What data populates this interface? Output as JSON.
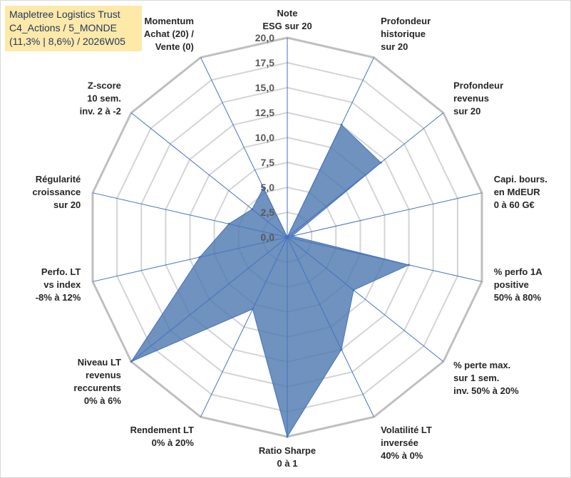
{
  "chart_data": {
    "type": "radar",
    "title": [
      "Mapletree Logistics Trust",
      "C4_Actions / 5_MONDE",
      "(11,3% | 8,6%) / 2026W05"
    ],
    "axis": {
      "min": 0,
      "max": 20,
      "step": 2.5,
      "tick_labels": [
        "0,0",
        "2,5",
        "5,0",
        "7,5",
        "10,0",
        "12,5",
        "15,0",
        "17,5",
        "20,0"
      ]
    },
    "categories": [
      [
        "Note",
        "ESG sur 20"
      ],
      [
        "Profondeur",
        "historique",
        "sur 20"
      ],
      [
        "Profondeur",
        "revenus",
        "sur 20"
      ],
      [
        "Capi. bours.",
        "en MdEUR",
        "0 à 60 G€"
      ],
      [
        "% perfo 1A",
        "positive",
        "50% à 80%"
      ],
      [
        "% perte max.",
        "sur 1 sem.",
        "inv. 50% à 20%"
      ],
      [
        "Volatilité LT",
        "inversée",
        "40% à 0%"
      ],
      [
        "Ratio Sharpe",
        "0 à 1"
      ],
      [
        "Rendement LT",
        "0% à 20%"
      ],
      [
        "Niveau LT",
        "revenus",
        "reccurents",
        "0% à 6%"
      ],
      [
        "Perfo. LT",
        "vs index",
        "-8% à 12%"
      ],
      [
        "Régularité",
        "croissance",
        "sur 20"
      ],
      [
        "Z-score",
        "10 sem.",
        "inv. 2 à -2"
      ],
      [
        "Momentum",
        "Achat (20) /",
        "Vente (0)"
      ]
    ],
    "series": [
      {
        "name": "Mapletree Logistics Trust",
        "values": [
          0,
          12.5,
          12.0,
          0.5,
          12.5,
          8.5,
          12.5,
          20,
          8.0,
          20,
          9.0,
          6.0,
          4.5,
          5.5
        ],
        "fill": "#4f7ab0",
        "stroke": "#4472c4"
      }
    ],
    "grid": true
  }
}
